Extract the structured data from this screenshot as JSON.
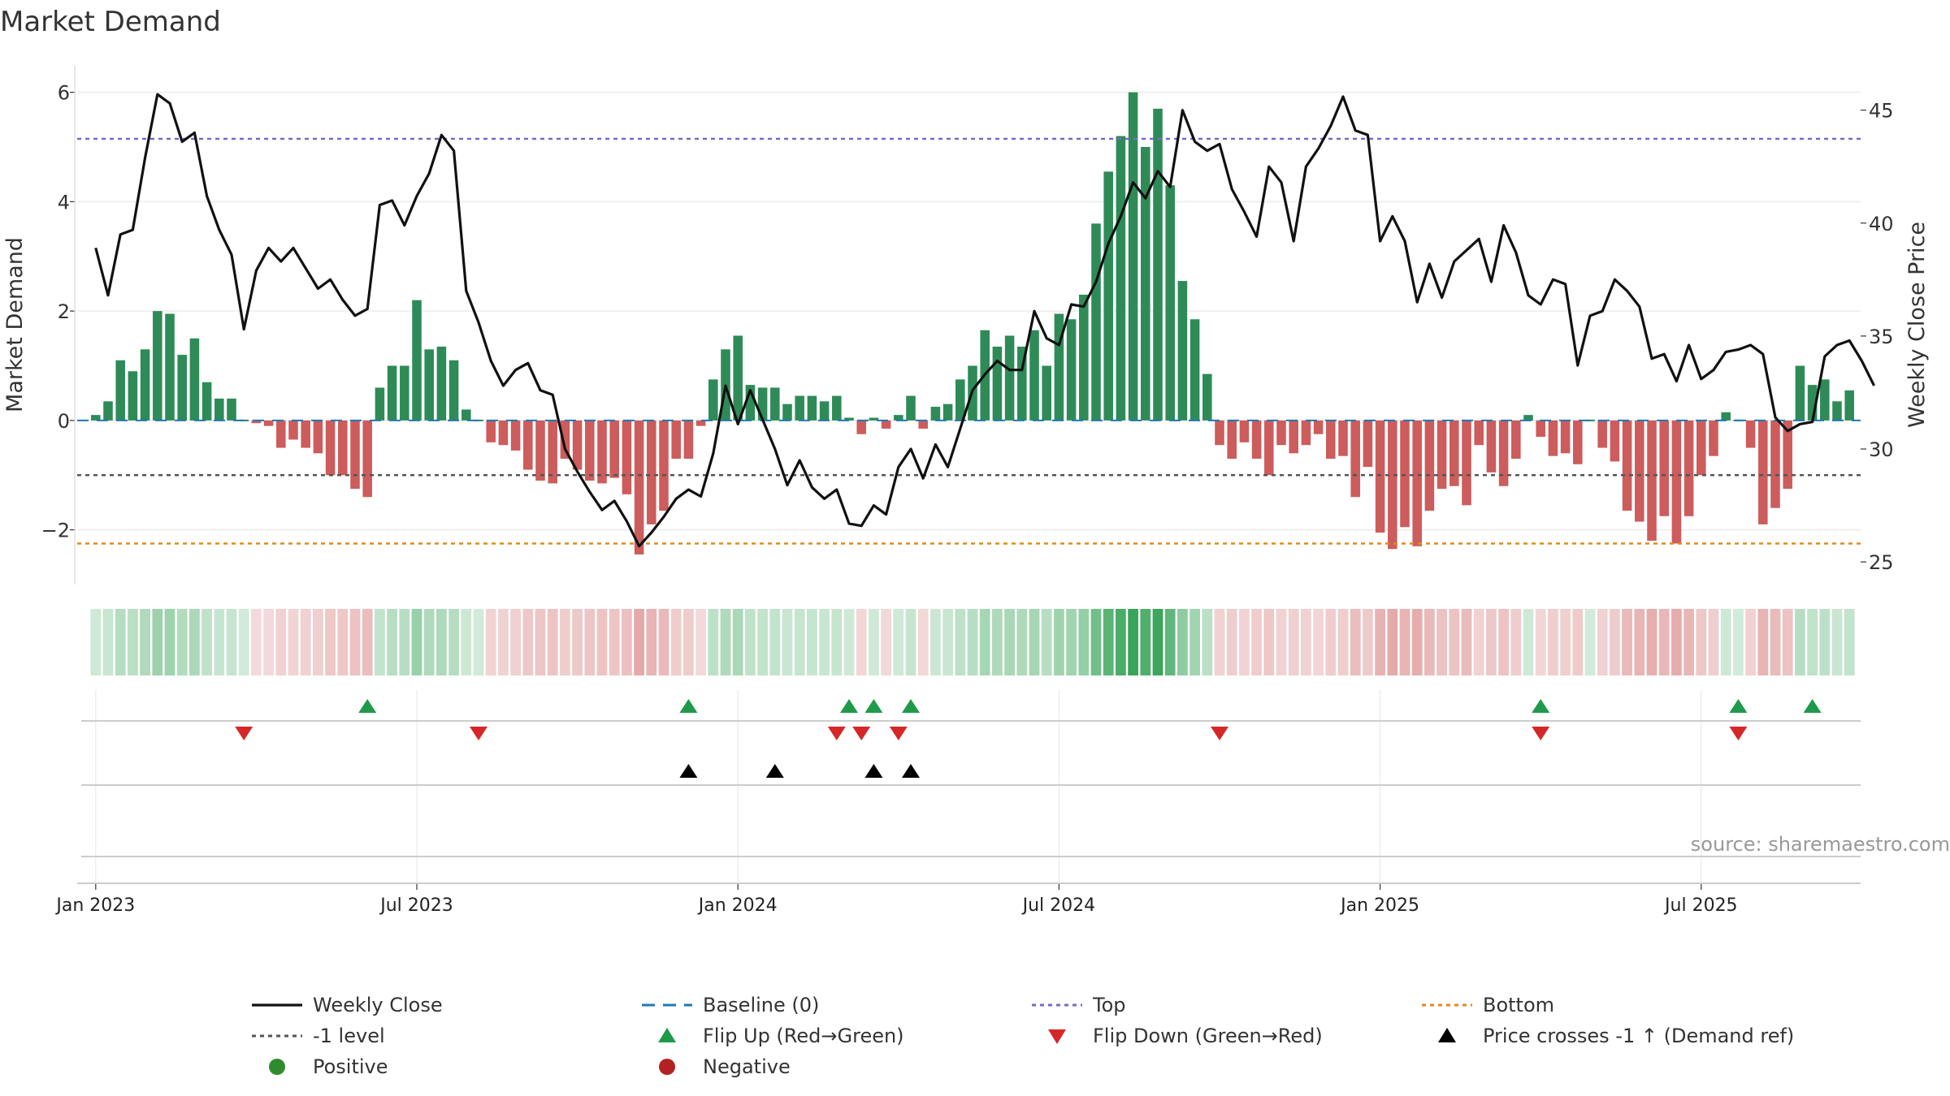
{
  "chart_data": {
    "type": "bar",
    "title": "Market Demand",
    "ylabel": "Market Demand",
    "y2label": "Weekly Close Price",
    "ylim": [
      -3,
      6.5
    ],
    "y2lim": [
      24,
      47
    ],
    "y_ticks": [
      -2,
      0,
      2,
      4,
      6
    ],
    "y_tick_labels": [
      "−2",
      "0",
      "2",
      "4",
      "6"
    ],
    "y2_ticks": [
      25,
      30,
      35,
      40,
      45
    ],
    "x_tick_labels": [
      "Jan 2023",
      "Jul 2023",
      "Jan 2024",
      "Jul 2024",
      "Jan 2025",
      "Jul 2025"
    ],
    "x_tick_weeks": [
      0,
      26,
      52,
      78,
      104,
      130
    ],
    "x_start_week": -1.5,
    "weeks": 145,
    "reference_lines": {
      "top": 5.15,
      "bottom": -2.25,
      "minus_one": -1.0,
      "baseline": 0
    },
    "colors": {
      "positive": "#2e8b57",
      "negative": "#cd5c5c",
      "price": "#111111",
      "top": "#7b68c8",
      "bottom": "#e08a1e",
      "minus_one": "#555555",
      "baseline": "#1f77b4"
    },
    "demand": [
      0.1,
      0.35,
      1.1,
      0.9,
      1.3,
      2.0,
      1.95,
      1.2,
      1.5,
      0.7,
      0.4,
      0.4,
      0,
      -0.05,
      -0.1,
      -0.5,
      -0.35,
      -0.5,
      -0.6,
      -1.0,
      -1.0,
      -1.25,
      -1.4,
      0.6,
      1.0,
      1.0,
      2.2,
      1.3,
      1.35,
      1.1,
      0.2,
      0,
      -0.4,
      -0.45,
      -0.55,
      -0.9,
      -1.1,
      -1.15,
      -0.7,
      -0.9,
      -1.1,
      -1.15,
      -1.05,
      -1.35,
      -2.45,
      -1.9,
      -1.65,
      -0.7,
      -0.7,
      -0.1,
      0.75,
      1.3,
      1.55,
      0.65,
      0.6,
      0.6,
      0.3,
      0.45,
      0.45,
      0.35,
      0.45,
      0.05,
      -0.25,
      0.05,
      -0.15,
      0.1,
      0.45,
      -0.15,
      0.25,
      0.3,
      0.75,
      1.0,
      1.65,
      1.35,
      1.55,
      1.35,
      1.65,
      1.0,
      1.95,
      1.85,
      2.3,
      3.6,
      4.55,
      5.2,
      6.0,
      5.0,
      5.7,
      4.3,
      2.55,
      1.85,
      0.85,
      -0.45,
      -0.7,
      -0.4,
      -0.7,
      -1.0,
      -0.45,
      -0.6,
      -0.45,
      -0.25,
      -0.7,
      -0.65,
      -1.4,
      -0.85,
      -2.05,
      -2.35,
      -1.95,
      -2.3,
      -1.65,
      -1.25,
      -1.2,
      -1.55,
      -0.45,
      -0.95,
      -1.2,
      -0.7,
      0.1,
      -0.3,
      -0.65,
      -0.6,
      -0.8,
      0,
      -0.5,
      -0.75,
      -1.65,
      -1.85,
      -2.2,
      -1.75,
      -2.25,
      -1.75,
      -1.0,
      -0.65,
      0.15,
      0,
      -0.5,
      -1.9,
      -1.6,
      -1.25,
      1.0,
      0.65,
      0.75,
      0.35,
      0.55
    ],
    "price": [
      38.9,
      36.8,
      39.5,
      39.7,
      42.9,
      45.7,
      45.3,
      43.6,
      44.0,
      41.2,
      39.7,
      38.6,
      35.3,
      37.9,
      38.9,
      38.3,
      38.9,
      38.0,
      37.1,
      37.5,
      36.6,
      35.9,
      36.2,
      40.8,
      41.0,
      39.9,
      41.2,
      42.2,
      43.9,
      43.2,
      37.0,
      35.6,
      33.9,
      32.8,
      33.5,
      33.8,
      32.6,
      32.4,
      30.0,
      29.0,
      28.1,
      27.3,
      27.7,
      26.8,
      25.7,
      26.3,
      27.0,
      27.8,
      28.2,
      27.9,
      29.8,
      32.8,
      31.1,
      32.6,
      31.3,
      30.0,
      28.4,
      29.5,
      28.3,
      27.8,
      28.2,
      26.7,
      26.6,
      27.5,
      27.1,
      29.2,
      30.0,
      28.7,
      30.2,
      29.2,
      30.9,
      32.6,
      33.3,
      33.9,
      33.5,
      33.5,
      36.1,
      34.9,
      34.6,
      36.4,
      36.3,
      37.4,
      39.1,
      40.3,
      41.8,
      41.1,
      42.3,
      41.6,
      45.0,
      43.6,
      43.2,
      43.5,
      41.5,
      40.5,
      39.4,
      42.5,
      41.8,
      39.2,
      42.5,
      43.3,
      44.3,
      45.6,
      44.1,
      43.9,
      39.2,
      40.3,
      39.2,
      36.5,
      38.2,
      36.7,
      38.3,
      38.8,
      39.3,
      37.4,
      39.9,
      38.7,
      36.8,
      36.4,
      37.5,
      37.3,
      33.7,
      35.9,
      36.1,
      37.5,
      37.0,
      36.3,
      34.0,
      34.2,
      33.0,
      34.6,
      33.1,
      33.5,
      34.3,
      34.4,
      34.6,
      34.2,
      31.4,
      30.8,
      31.1,
      31.2,
      34.1,
      34.6,
      34.8,
      33.9,
      32.8
    ],
    "heat_strip": {
      "description_levels": "per-week strength shading derived from demand"
    },
    "flip_up_weeks": [
      22,
      48,
      61,
      63,
      66,
      117,
      133,
      139
    ],
    "flip_down_weeks": [
      12,
      31,
      60,
      62,
      65,
      91,
      117,
      133
    ],
    "price_cross_weeks": [
      48,
      55,
      63,
      66
    ],
    "legend": {
      "weekly_close": "Weekly Close",
      "baseline": "Baseline (0)",
      "top": "Top",
      "bottom": "Bottom",
      "minus_one": "-1 level",
      "flip_up": "Flip Up (Red→Green)",
      "flip_down": "Flip Down (Green→Red)",
      "price_cross": "Price crosses -1 ↑ (Demand ref)",
      "positive": "Positive",
      "negative": "Negative"
    },
    "source": "source: sharemaestro.com"
  }
}
